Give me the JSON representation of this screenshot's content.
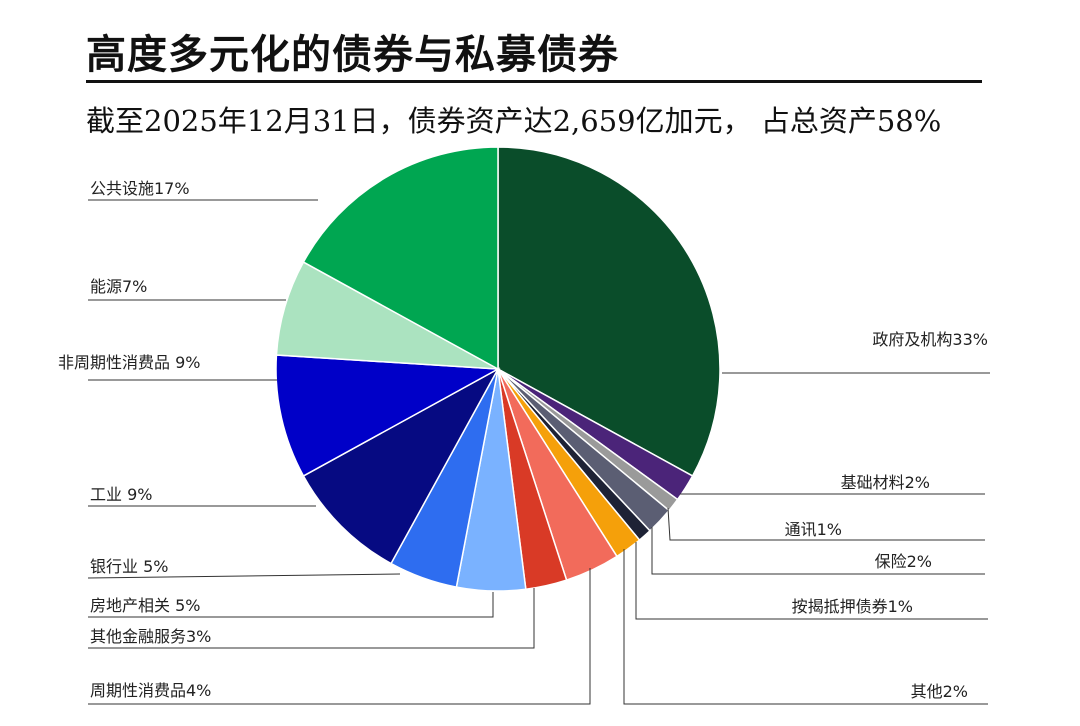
{
  "title": "高度多元化的债券与私募债券",
  "subtitle": "截至2025年12月31日，债券资产达2,659亿加元， 占总资产58%",
  "chart_data": {
    "type": "pie",
    "start_angle_deg": 0,
    "direction": "clockwise",
    "slices": [
      {
        "label": "政府及机构33%",
        "value": 33,
        "color": "#0a4d2a"
      },
      {
        "label": "基础材料2%",
        "value": 2,
        "color": "#4b2479"
      },
      {
        "label": "通讯1%",
        "value": 1,
        "color": "#9a9a9a"
      },
      {
        "label": "保险2%",
        "value": 2,
        "color": "#5b5e73"
      },
      {
        "label": "按揭抵押债券1%",
        "value": 1,
        "color": "#1e2235"
      },
      {
        "label": "其他2%",
        "value": 2,
        "color": "#f5a00a"
      },
      {
        "label": "周期性消费品4%",
        "value": 4,
        "color": "#f26b5b"
      },
      {
        "label": "其他金融服务3%",
        "value": 3,
        "color": "#d93a26"
      },
      {
        "label": "房地产相关 5%",
        "value": 5,
        "color": "#7ab2ff"
      },
      {
        "label": "银行业 5%",
        "value": 5,
        "color": "#2e6df0"
      },
      {
        "label": "工业 9%",
        "value": 9,
        "color": "#060a82"
      },
      {
        "label": "非周期性消费品 9%",
        "value": 9,
        "color": "#0000c8"
      },
      {
        "label": "能源7%",
        "value": 7,
        "color": "#abe3c0"
      },
      {
        "label": "公共设施17%",
        "value": 17,
        "color": "#00a651"
      }
    ]
  }
}
